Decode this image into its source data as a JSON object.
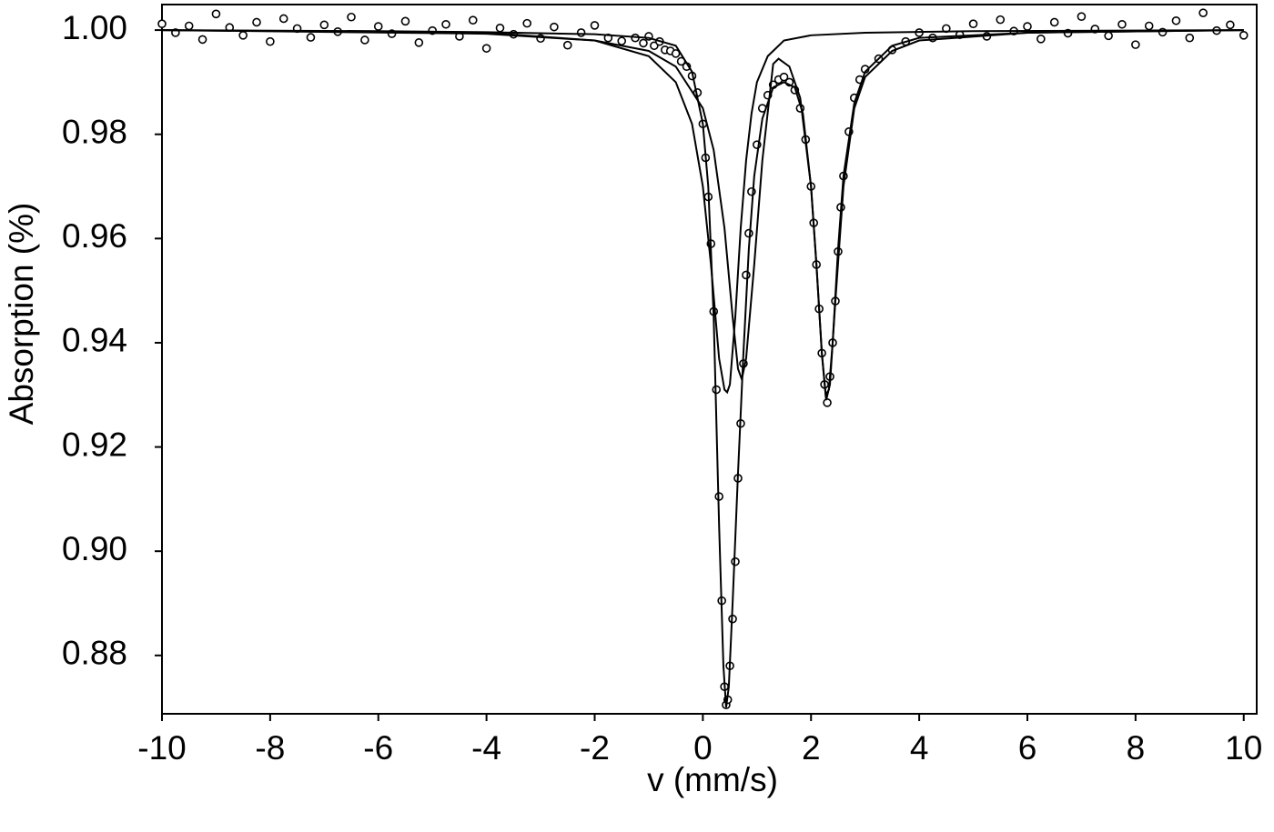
{
  "chart_data": {
    "type": "scatter",
    "x_label": "v (mm/s)",
    "y_label": "Absorption (%)",
    "xlim": [
      -10,
      10.24
    ],
    "ylim": [
      0.8688,
      1.0049
    ],
    "xticks": [
      -10,
      -8,
      -6,
      -4,
      -2,
      0,
      2,
      4,
      6,
      8,
      10
    ],
    "yticks": [
      {
        "value": 1.0,
        "label": "1.00"
      },
      0.98,
      0.96,
      0.94,
      0.92,
      {
        "value": 0.9,
        "label": "0.90"
      },
      0.88
    ],
    "series": [
      {
        "mode": "markers",
        "color": "#000000",
        "x": [
          -10,
          -9.75,
          -9.5,
          -9.25,
          -9,
          -8.75,
          -8.5,
          -8.25,
          -8,
          -7.75,
          -7.5,
          -7.25,
          -7,
          -6.75,
          -6.5,
          -6.25,
          -6,
          -5.75,
          -5.5,
          -5.25,
          -5,
          -4.75,
          -4.5,
          -4.25,
          -4,
          -3.75,
          -3.5,
          -3.25,
          -3,
          -2.75,
          -2.5,
          -2.25,
          -2,
          -1.75,
          -1.5,
          -1.25,
          -1.1,
          -1.0,
          -0.9,
          -0.8,
          -0.7,
          -0.6,
          -0.5,
          -0.4,
          -0.3,
          -0.2,
          -0.1,
          0,
          0.05,
          0.1,
          0.15,
          0.2,
          0.25,
          0.3,
          0.35,
          0.4,
          0.43,
          0.46,
          0.5,
          0.55,
          0.6,
          0.65,
          0.7,
          0.75,
          0.8,
          0.85,
          0.9,
          1.0,
          1.1,
          1.2,
          1.3,
          1.4,
          1.5,
          1.6,
          1.7,
          1.8,
          1.9,
          2.0,
          2.05,
          2.1,
          2.15,
          2.2,
          2.25,
          2.3,
          2.35,
          2.4,
          2.45,
          2.5,
          2.55,
          2.6,
          2.7,
          2.8,
          2.9,
          3.0,
          3.25,
          3.5,
          3.75,
          4,
          4.25,
          4.5,
          4.75,
          5,
          5.25,
          5.5,
          5.75,
          6,
          6.25,
          6.5,
          6.75,
          7,
          7.25,
          7.5,
          7.75,
          8,
          8.25,
          8.5,
          8.75,
          9,
          9.25,
          9.5,
          9.75,
          10
        ],
        "values": [
          1.0012,
          0.9995,
          1.0008,
          0.9982,
          1.0031,
          1.0005,
          0.999,
          1.0015,
          0.9978,
          1.0022,
          1.0003,
          0.9986,
          1.001,
          0.9997,
          1.0025,
          0.9981,
          1.0007,
          0.9993,
          1.0017,
          0.9976,
          0.9999,
          1.0011,
          0.9988,
          1.0019,
          0.9965,
          1.0004,
          0.9992,
          1.0013,
          0.9984,
          1.0006,
          0.9971,
          0.9995,
          1.0009,
          0.9985,
          0.9979,
          0.9985,
          0.9975,
          0.9988,
          0.997,
          0.9978,
          0.9962,
          0.996,
          0.9955,
          0.994,
          0.993,
          0.9912,
          0.988,
          0.982,
          0.9755,
          0.968,
          0.959,
          0.946,
          0.931,
          0.9105,
          0.8905,
          0.874,
          0.8705,
          0.8715,
          0.878,
          0.887,
          0.898,
          0.914,
          0.9245,
          0.936,
          0.953,
          0.961,
          0.969,
          0.978,
          0.985,
          0.9875,
          0.9895,
          0.9905,
          0.991,
          0.99,
          0.9885,
          0.985,
          0.979,
          0.97,
          0.963,
          0.955,
          0.9465,
          0.938,
          0.932,
          0.9285,
          0.9335,
          0.94,
          0.948,
          0.9575,
          0.966,
          0.972,
          0.9805,
          0.987,
          0.9905,
          0.9925,
          0.9945,
          0.9962,
          0.9978,
          0.9995,
          0.9985,
          1.0003,
          0.9991,
          1.0012,
          0.9988,
          1.002,
          0.9998,
          1.0007,
          0.9983,
          1.0015,
          0.9994,
          1.0026,
          1.0002,
          0.9989,
          1.0011,
          0.9972,
          1.0008,
          0.9996,
          1.0018,
          0.9985,
          1.0033,
          0.9999,
          1.001,
          0.999
        ]
      },
      {
        "mode": "line",
        "color": "#000000",
        "x": [
          -10,
          -6,
          -4,
          -2,
          -1,
          -0.5,
          -0.2,
          0,
          0.1,
          0.2,
          0.3,
          0.38,
          0.43,
          0.48,
          0.55,
          0.65,
          0.75,
          0.85,
          0.95,
          1.1,
          1.3,
          1.5,
          1.7,
          1.85,
          2.0,
          2.1,
          2.2,
          2.27,
          2.33,
          2.4,
          2.5,
          2.6,
          2.8,
          3.0,
          3.5,
          4,
          6,
          10
        ],
        "values": [
          1.0,
          0.9998,
          0.9996,
          0.9992,
          0.9985,
          0.997,
          0.992,
          0.982,
          0.97,
          0.945,
          0.905,
          0.878,
          0.87,
          0.874,
          0.89,
          0.915,
          0.938,
          0.958,
          0.972,
          0.983,
          0.989,
          0.99,
          0.989,
          0.984,
          0.97,
          0.955,
          0.938,
          0.93,
          0.931,
          0.94,
          0.958,
          0.972,
          0.986,
          0.992,
          0.997,
          0.9985,
          0.9995,
          1.0
        ]
      },
      {
        "mode": "line",
        "color": "#000000",
        "x": [
          -10,
          -4,
          -2,
          -1,
          -0.5,
          -0.2,
          0,
          0.15,
          0.3,
          0.4,
          0.45,
          0.5,
          0.6,
          0.7,
          0.8,
          0.9,
          1.0,
          1.2,
          1.5,
          2,
          3,
          5,
          10
        ],
        "values": [
          1.0,
          0.9995,
          0.998,
          0.995,
          0.99,
          0.982,
          0.97,
          0.955,
          0.937,
          0.931,
          0.9305,
          0.932,
          0.945,
          0.962,
          0.975,
          0.984,
          0.99,
          0.995,
          0.998,
          0.999,
          0.9995,
          0.9998,
          1.0
        ]
      },
      {
        "mode": "line",
        "color": "#000000",
        "x": [
          -10,
          -4,
          -2,
          -1,
          -0.5,
          0,
          0.2,
          0.4,
          0.55,
          0.65,
          0.72,
          0.8,
          0.95,
          1.1,
          1.3,
          1.4,
          1.6,
          1.8,
          2.0,
          2.1,
          2.2,
          2.28,
          2.35,
          2.45,
          2.6,
          2.8,
          3.0,
          3.5,
          4,
          6,
          10
        ],
        "values": [
          1.0,
          0.9993,
          0.998,
          0.996,
          0.993,
          0.985,
          0.977,
          0.962,
          0.945,
          0.935,
          0.933,
          0.937,
          0.955,
          0.975,
          0.9935,
          0.9945,
          0.993,
          0.987,
          0.97,
          0.955,
          0.938,
          0.929,
          0.932,
          0.948,
          0.97,
          0.985,
          0.991,
          0.996,
          0.998,
          0.9995,
          1.0
        ]
      }
    ]
  }
}
